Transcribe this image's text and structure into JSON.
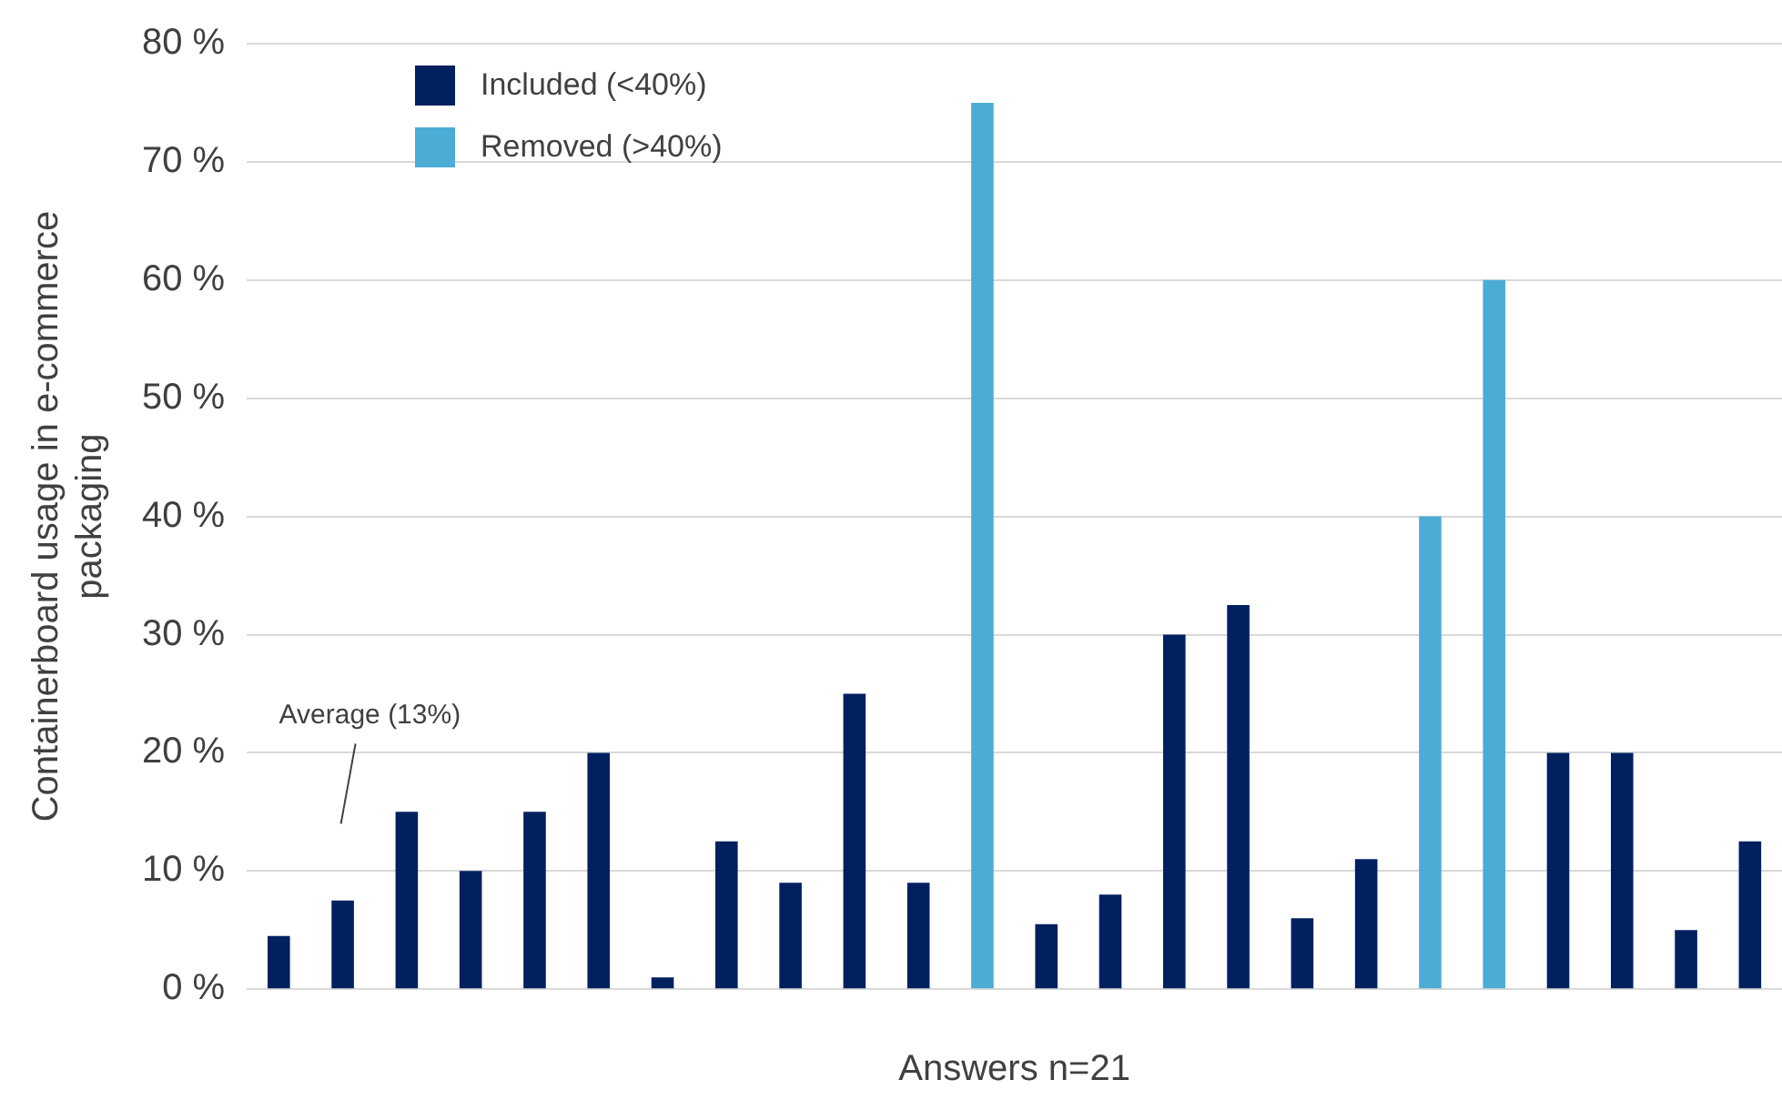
{
  "chart_data": {
    "type": "bar",
    "xlabel": "Answers n=21",
    "ylabel": "Containerboard usage in e-commerce packaging",
    "categories": [
      null,
      null,
      null,
      null,
      null,
      null,
      null,
      null,
      null,
      null,
      null,
      null,
      null,
      null,
      null,
      null,
      null,
      null,
      null,
      null,
      null,
      null,
      null,
      null
    ],
    "series": [
      {
        "name": "Included (<40%)",
        "color": "#002060",
        "values": [
          4.5,
          7.5,
          15,
          10,
          15,
          20,
          1,
          12.5,
          9,
          25,
          9,
          null,
          5.5,
          8,
          30,
          32.5,
          6,
          11,
          null,
          null,
          20,
          20,
          5,
          12.5
        ]
      },
      {
        "name": "Removed (>40%)",
        "color": "#4bacd6",
        "values": [
          null,
          null,
          null,
          null,
          null,
          null,
          null,
          null,
          null,
          null,
          null,
          75,
          null,
          null,
          null,
          null,
          null,
          null,
          40,
          60,
          null,
          null,
          null,
          null
        ]
      }
    ],
    "ylim": [
      0,
      80
    ],
    "yticks": [
      {
        "value": 0,
        "label": "0 %"
      },
      {
        "value": 10,
        "label": "10 %"
      },
      {
        "value": 20,
        "label": "20 %"
      },
      {
        "value": 30,
        "label": "30 %"
      },
      {
        "value": 40,
        "label": "40 %"
      },
      {
        "value": 50,
        "label": "50 %"
      },
      {
        "value": 60,
        "label": "60 %"
      },
      {
        "value": 70,
        "label": "70 %"
      },
      {
        "value": 80,
        "label": "80 %"
      }
    ],
    "grid": "y",
    "legend": "top left",
    "annotations": [
      "Average (13%)"
    ]
  }
}
